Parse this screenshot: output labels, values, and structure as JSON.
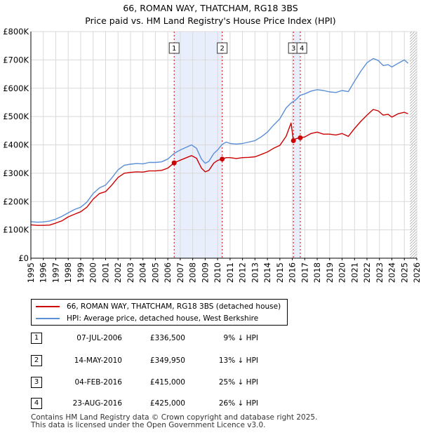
{
  "title": {
    "line1": "66, ROMAN WAY, THATCHAM, RG18 3BS",
    "line2": "Price paid vs. HM Land Registry's House Price Index (HPI)"
  },
  "chart_data": {
    "type": "line",
    "title": "66, ROMAN WAY, THATCHAM, RG18 3BS — Price paid vs. HM Land Registry's House Price Index (HPI)",
    "xlabel": "",
    "ylabel": "",
    "xlim": [
      1995,
      2026
    ],
    "ylim": [
      0,
      800000
    ],
    "y_ticks": [
      {
        "value": 0,
        "label": "£0"
      },
      {
        "value": 100000,
        "label": "£100K"
      },
      {
        "value": 200000,
        "label": "£200K"
      },
      {
        "value": 300000,
        "label": "£300K"
      },
      {
        "value": 400000,
        "label": "£400K"
      },
      {
        "value": 500000,
        "label": "£500K"
      },
      {
        "value": 600000,
        "label": "£600K"
      },
      {
        "value": 700000,
        "label": "£700K"
      },
      {
        "value": 800000,
        "label": "£800K"
      }
    ],
    "x_ticks": [
      "1995",
      "1996",
      "1997",
      "1998",
      "1999",
      "2000",
      "2001",
      "2002",
      "2003",
      "2004",
      "2005",
      "2006",
      "2007",
      "2008",
      "2009",
      "2010",
      "2011",
      "2012",
      "2013",
      "2014",
      "2015",
      "2016",
      "2017",
      "2018",
      "2019",
      "2020",
      "2021",
      "2022",
      "2023",
      "2024",
      "2025",
      "2026"
    ],
    "grid": true,
    "series": [
      {
        "name": "66, ROMAN WAY, THATCHAM, RG18 3BS (detached house)",
        "color": "#cc0000",
        "points": [
          [
            1995.0,
            118000
          ],
          [
            1995.5,
            116000
          ],
          [
            1996.0,
            116000
          ],
          [
            1996.5,
            117000
          ],
          [
            1997.0,
            124000
          ],
          [
            1997.5,
            132000
          ],
          [
            1998.0,
            146000
          ],
          [
            1998.5,
            155000
          ],
          [
            1999.0,
            164000
          ],
          [
            1999.5,
            180000
          ],
          [
            2000.0,
            208000
          ],
          [
            2000.5,
            228000
          ],
          [
            2001.0,
            235000
          ],
          [
            2001.5,
            258000
          ],
          [
            2002.0,
            285000
          ],
          [
            2002.5,
            300000
          ],
          [
            2003.0,
            303000
          ],
          [
            2003.5,
            305000
          ],
          [
            2004.0,
            304000
          ],
          [
            2004.5,
            308000
          ],
          [
            2005.0,
            308000
          ],
          [
            2005.5,
            310000
          ],
          [
            2006.0,
            318000
          ],
          [
            2006.51,
            336500
          ],
          [
            2007.0,
            346000
          ],
          [
            2007.5,
            355000
          ],
          [
            2007.9,
            362000
          ],
          [
            2008.3,
            353000
          ],
          [
            2008.7,
            318000
          ],
          [
            2009.0,
            305000
          ],
          [
            2009.3,
            310000
          ],
          [
            2009.7,
            336000
          ],
          [
            2010.0,
            345000
          ],
          [
            2010.37,
            349950
          ],
          [
            2010.7,
            355000
          ],
          [
            2011.0,
            355000
          ],
          [
            2011.5,
            352000
          ],
          [
            2012.0,
            355000
          ],
          [
            2012.5,
            356000
          ],
          [
            2013.0,
            358000
          ],
          [
            2013.5,
            366000
          ],
          [
            2014.0,
            375000
          ],
          [
            2014.5,
            388000
          ],
          [
            2015.0,
            398000
          ],
          [
            2015.5,
            430000
          ],
          [
            2015.9,
            477000
          ],
          [
            2016.09,
            415000
          ],
          [
            2016.3,
            422000
          ],
          [
            2016.64,
            425000
          ],
          [
            2017.0,
            428000
          ],
          [
            2017.5,
            440000
          ],
          [
            2018.0,
            445000
          ],
          [
            2018.5,
            438000
          ],
          [
            2019.0,
            438000
          ],
          [
            2019.5,
            435000
          ],
          [
            2020.0,
            440000
          ],
          [
            2020.5,
            430000
          ],
          [
            2021.0,
            458000
          ],
          [
            2021.5,
            483000
          ],
          [
            2022.0,
            505000
          ],
          [
            2022.5,
            525000
          ],
          [
            2022.9,
            520000
          ],
          [
            2023.3,
            505000
          ],
          [
            2023.7,
            508000
          ],
          [
            2024.0,
            498000
          ],
          [
            2024.5,
            510000
          ],
          [
            2025.0,
            515000
          ],
          [
            2025.3,
            510000
          ]
        ]
      },
      {
        "name": "HPI: Average price, detached house, West Berkshire",
        "color": "#5b8fd6",
        "points": [
          [
            1995.0,
            129000
          ],
          [
            1995.5,
            127000
          ],
          [
            1996.0,
            128000
          ],
          [
            1996.5,
            131000
          ],
          [
            1997.0,
            138000
          ],
          [
            1997.5,
            148000
          ],
          [
            1998.0,
            160000
          ],
          [
            1998.5,
            172000
          ],
          [
            1999.0,
            180000
          ],
          [
            1999.5,
            198000
          ],
          [
            2000.0,
            228000
          ],
          [
            2000.5,
            248000
          ],
          [
            2001.0,
            258000
          ],
          [
            2001.5,
            283000
          ],
          [
            2002.0,
            312000
          ],
          [
            2002.5,
            328000
          ],
          [
            2003.0,
            332000
          ],
          [
            2003.5,
            334000
          ],
          [
            2004.0,
            333000
          ],
          [
            2004.5,
            338000
          ],
          [
            2005.0,
            338000
          ],
          [
            2005.5,
            340000
          ],
          [
            2006.0,
            350000
          ],
          [
            2006.51,
            370000
          ],
          [
            2007.0,
            382000
          ],
          [
            2007.5,
            392000
          ],
          [
            2007.9,
            400000
          ],
          [
            2008.3,
            388000
          ],
          [
            2008.7,
            350000
          ],
          [
            2009.0,
            335000
          ],
          [
            2009.3,
            342000
          ],
          [
            2009.7,
            370000
          ],
          [
            2010.0,
            382000
          ],
          [
            2010.37,
            402000
          ],
          [
            2010.7,
            410000
          ],
          [
            2011.0,
            405000
          ],
          [
            2011.5,
            403000
          ],
          [
            2012.0,
            405000
          ],
          [
            2012.5,
            410000
          ],
          [
            2013.0,
            415000
          ],
          [
            2013.5,
            428000
          ],
          [
            2014.0,
            445000
          ],
          [
            2014.5,
            470000
          ],
          [
            2015.0,
            492000
          ],
          [
            2015.5,
            530000
          ],
          [
            2015.9,
            548000
          ],
          [
            2016.09,
            553000
          ],
          [
            2016.3,
            560000
          ],
          [
            2016.64,
            575000
          ],
          [
            2017.0,
            580000
          ],
          [
            2017.5,
            590000
          ],
          [
            2018.0,
            595000
          ],
          [
            2018.5,
            592000
          ],
          [
            2019.0,
            587000
          ],
          [
            2019.5,
            585000
          ],
          [
            2020.0,
            592000
          ],
          [
            2020.5,
            588000
          ],
          [
            2021.0,
            625000
          ],
          [
            2021.5,
            660000
          ],
          [
            2022.0,
            690000
          ],
          [
            2022.5,
            705000
          ],
          [
            2022.9,
            698000
          ],
          [
            2023.3,
            680000
          ],
          [
            2023.7,
            683000
          ],
          [
            2024.0,
            675000
          ],
          [
            2024.5,
            688000
          ],
          [
            2025.0,
            700000
          ],
          [
            2025.3,
            688000
          ]
        ]
      }
    ],
    "sales": [
      {
        "id": "1",
        "date": "07-JUL-2006",
        "x": 2006.51,
        "price_value": 336500,
        "price": "£336,500",
        "hpi": "9% ↓ HPI"
      },
      {
        "id": "2",
        "date": "14-MAY-2010",
        "x": 2010.37,
        "price_value": 349950,
        "price": "£349,950",
        "hpi": "13% ↓ HPI"
      },
      {
        "id": "3",
        "date": "04-FEB-2016",
        "x": 2016.09,
        "price_value": 415000,
        "price": "£415,000",
        "hpi": "25% ↓ HPI"
      },
      {
        "id": "4",
        "date": "23-AUG-2016",
        "x": 2016.64,
        "price_value": 425000,
        "price": "£425,000",
        "hpi": "26% ↓ HPI"
      }
    ],
    "shaded_ranges": [
      [
        2006.51,
        2010.37
      ],
      [
        2016.09,
        2016.64
      ]
    ],
    "future_from": 2025.45,
    "colors": {
      "grid": "#d9d9d9",
      "shade": "#e8eefc",
      "sale_line": "#cc0000"
    }
  },
  "legend": {
    "items": [
      {
        "label": "66, ROMAN WAY, THATCHAM, RG18 3BS (detached house)",
        "color": "#cc0000"
      },
      {
        "label": "HPI: Average price, detached house, West Berkshire",
        "color": "#5b8fd6"
      }
    ]
  },
  "footer": {
    "line1": "Contains HM Land Registry data © Crown copyright and database right 2025.",
    "line2": "This data is licensed under the Open Government Licence v3.0."
  }
}
